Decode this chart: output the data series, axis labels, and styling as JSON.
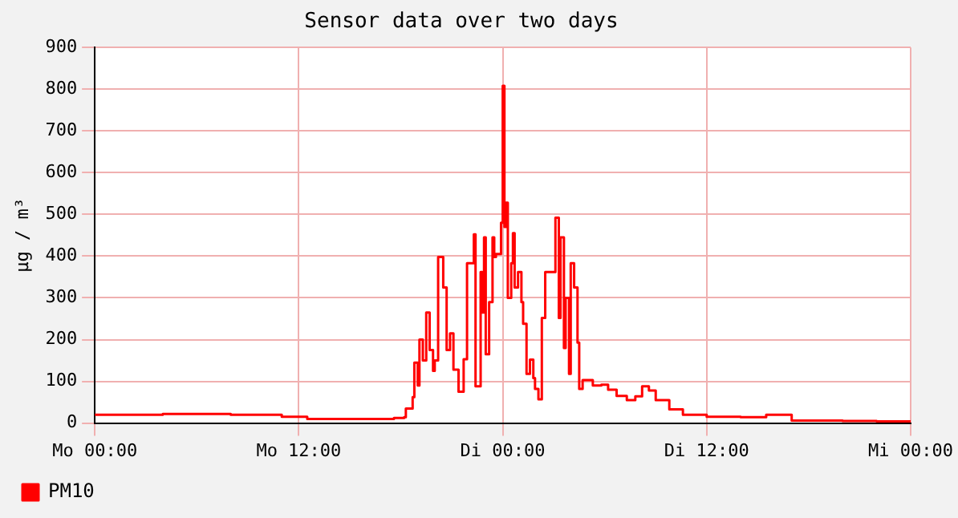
{
  "chart_data": {
    "type": "step",
    "title": "Sensor data over two days",
    "ylabel": "µg / m³",
    "x": [
      "--01-01T00:00",
      "--01-01T04:00",
      "--01-01T08:00",
      "--01-01T11:00",
      "--01-01T12:30",
      "--01-01T17:00",
      "--01-01T17:36",
      "--01-01T18:12",
      "--01-01T18:18",
      "--01-01T18:42",
      "--01-01T18:48",
      "--01-01T19:00",
      "--01-01T19:06",
      "--01-01T19:18",
      "--01-01T19:30",
      "--01-01T19:42",
      "--01-01T19:54",
      "--01-01T20:00",
      "--01-01T20:12",
      "--01-01T20:30",
      "--01-01T20:42",
      "--01-01T20:54",
      "--01-01T21:06",
      "--01-01T21:24",
      "--01-01T21:42",
      "--01-01T21:54",
      "--01-01T22:06",
      "--01-01T22:18",
      "--01-01T22:24",
      "--01-01T22:42",
      "--01-01T22:48",
      "--01-01T22:54",
      "--01-01T23:00",
      "--01-01T23:12",
      "--01-01T23:24",
      "--01-01T23:30",
      "--01-01T23:36",
      "--01-01T23:54",
      "--01-02T00:00",
      "--01-02T00:06",
      "--01-02T00:12",
      "--01-02T00:18",
      "--01-02T00:30",
      "--01-02T00:36",
      "--01-02T00:42",
      "--01-02T00:54",
      "--01-02T01:06",
      "--01-02T01:12",
      "--01-02T01:24",
      "--01-02T01:36",
      "--01-02T01:48",
      "--01-02T01:54",
      "--01-02T02:06",
      "--01-02T02:18",
      "--01-02T02:30",
      "--01-02T03:00",
      "--01-02T03:06",
      "--01-02T03:18",
      "--01-02T03:24",
      "--01-02T03:36",
      "--01-02T03:42",
      "--01-02T03:54",
      "--01-02T04:00",
      "--01-02T04:12",
      "--01-02T04:24",
      "--01-02T04:30",
      "--01-02T04:42",
      "--01-02T05:18",
      "--01-02T05:48",
      "--01-02T06:12",
      "--01-02T06:42",
      "--01-02T07:18",
      "--01-02T07:48",
      "--01-02T08:12",
      "--01-02T08:36",
      "--01-02T09:00",
      "--01-02T09:48",
      "--01-02T10:36",
      "--01-02T12:00",
      "--01-02T14:00",
      "--01-02T15:30",
      "--01-02T17:00",
      "--01-02T20:00",
      "--01-02T22:00",
      "--01-03T00:00"
    ],
    "series": [
      {
        "name": "PM10",
        "color": "#ff0000",
        "values": [
          20,
          22,
          20,
          15,
          10,
          10,
          12,
          14,
          35,
          62,
          145,
          90,
          200,
          150,
          265,
          175,
          125,
          150,
          398,
          325,
          175,
          215,
          128,
          75,
          153,
          383,
          383,
          452,
          88,
          362,
          265,
          445,
          165,
          290,
          445,
          398,
          405,
          480,
          808,
          470,
          528,
          300,
          383,
          455,
          325,
          362,
          290,
          238,
          118,
          152,
          108,
          82,
          57,
          252,
          362,
          362,
          492,
          252,
          445,
          180,
          300,
          118,
          383,
          325,
          193,
          82,
          103,
          90,
          92,
          80,
          65,
          55,
          64,
          88,
          78,
          55,
          33,
          20,
          15,
          14,
          20,
          6,
          5,
          4,
          6
        ]
      }
    ],
    "xlim": [
      "--01-01T00:00",
      "--01-03T00:00"
    ],
    "xticks": [
      {
        "value": "--01-01T00:00",
        "label": "Mo 00:00"
      },
      {
        "value": "--01-01T12:00",
        "label": "Mo 12:00"
      },
      {
        "value": "--01-02T00:00",
        "label": "Di 00:00"
      },
      {
        "value": "--01-02T12:00",
        "label": "Di 12:00"
      },
      {
        "value": "--01-03T00:00",
        "label": "Mi 00:00"
      }
    ],
    "ylim": [
      0,
      900
    ],
    "yticks": [
      0,
      100,
      200,
      300,
      400,
      500,
      600,
      700,
      800,
      900
    ],
    "grid": true,
    "legend": "bottom left",
    "marker": "none",
    "line_style": "solid"
  }
}
